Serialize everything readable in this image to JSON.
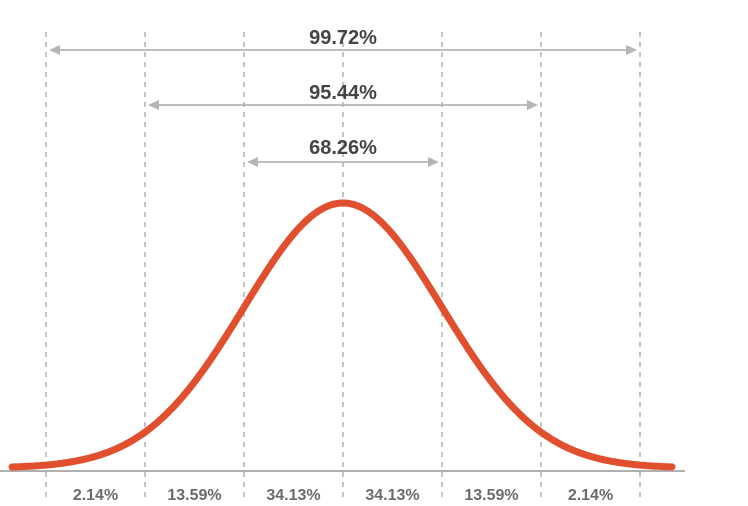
{
  "chart_data": {
    "type": "line",
    "title": "",
    "xlabel": "",
    "ylabel": "",
    "x_sigma_lines": [
      -3,
      -2,
      -1,
      0,
      1,
      2,
      3
    ],
    "xlim": [
      -3.33,
      3.33
    ],
    "curve_color": "#e0502e",
    "axis_color": "#b0b0b0",
    "guide_color": "#b5b5b5",
    "intervals": [
      {
        "label": "99.72%",
        "from": -3,
        "to": 3
      },
      {
        "label": "95.44%",
        "from": -2,
        "to": 2
      },
      {
        "label": "68.26%",
        "from": -1,
        "to": 1
      }
    ],
    "bands": [
      {
        "label": "2.14%",
        "from": -3,
        "to": -2
      },
      {
        "label": "13.59%",
        "from": -2,
        "to": -1
      },
      {
        "label": "34.13%",
        "from": -1,
        "to": 0
      },
      {
        "label": "34.13%",
        "from": 0,
        "to": 1
      },
      {
        "label": "13.59%",
        "from": 1,
        "to": 2
      },
      {
        "label": "2.14%",
        "from": 2,
        "to": 3
      }
    ]
  }
}
